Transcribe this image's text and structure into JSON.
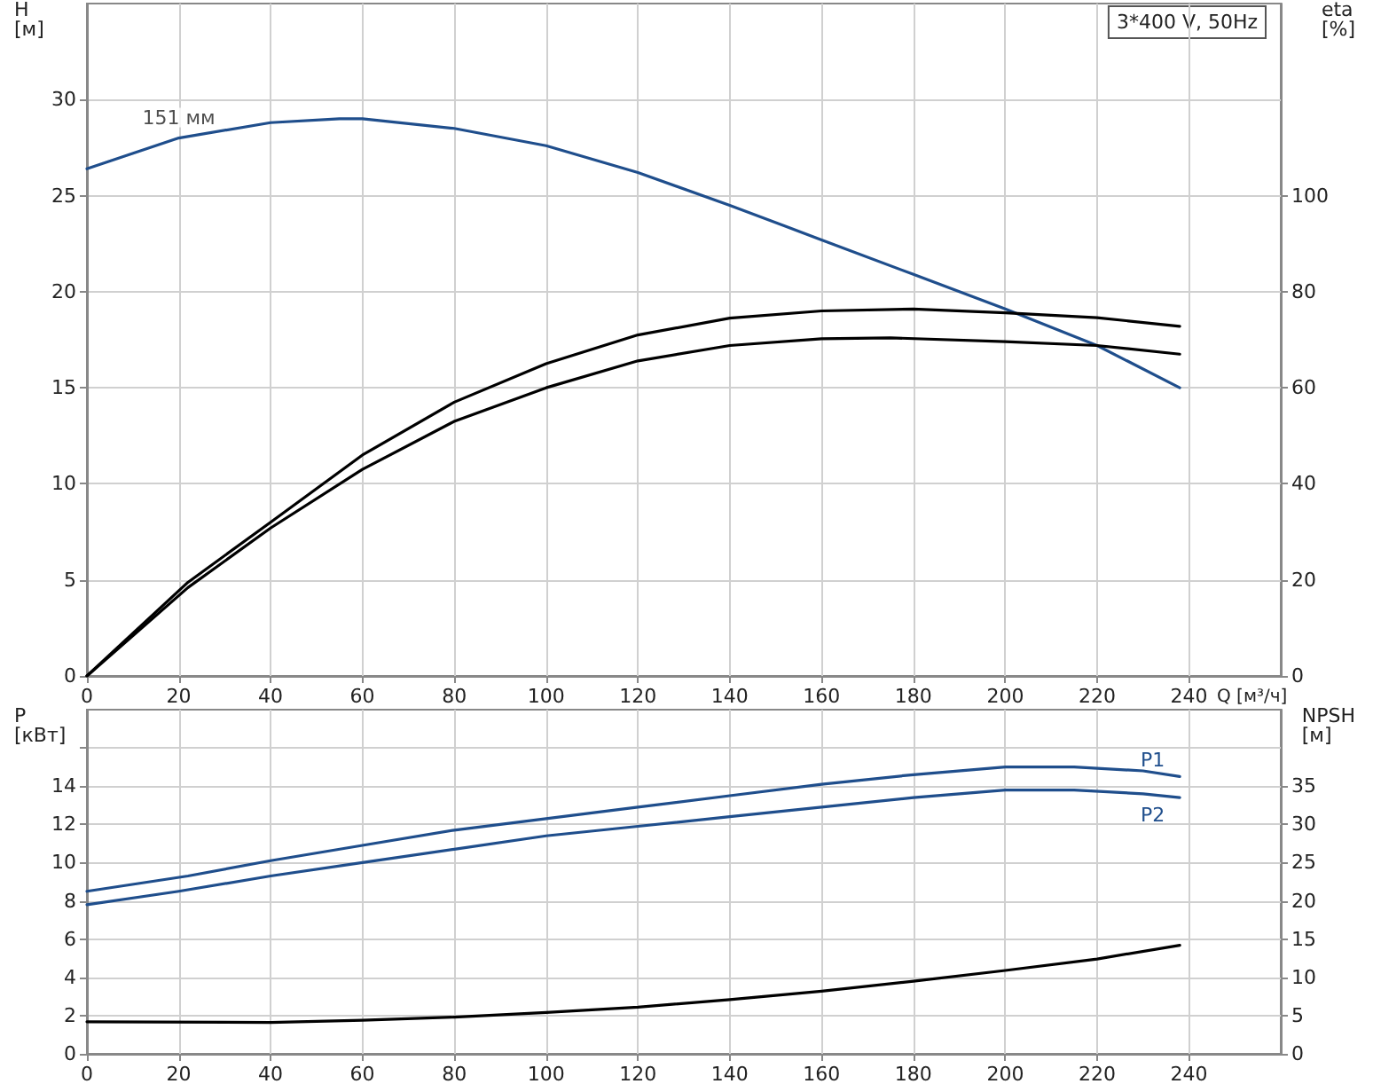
{
  "chart_data": [
    {
      "type": "line",
      "xlabel": "Q [м³/ч]",
      "ylabel": "H\n[м]",
      "y2label": "eta\n[%]",
      "xlim": [
        0,
        260
      ],
      "xticks": [
        0,
        20,
        40,
        60,
        80,
        100,
        120,
        140,
        160,
        180,
        200,
        220,
        240
      ],
      "ylim": [
        0,
        35
      ],
      "yticks": [
        0,
        5,
        10,
        15,
        20,
        25,
        30
      ],
      "y2lim": [
        0,
        140
      ],
      "y2ticks": [
        0,
        20,
        40,
        60,
        80,
        100
      ],
      "grid": true,
      "legend": false,
      "marker": "none",
      "line_style": "solid",
      "annotations": [
        {
          "text": "151 мм",
          "x": 20,
          "y": 28
        },
        "3*400 V, 50Hz"
      ],
      "series": [
        {
          "color": "#1f4e8c",
          "x": [
            0,
            20,
            40,
            55,
            60,
            80,
            100,
            120,
            140,
            160,
            180,
            200,
            220,
            238
          ],
          "values": [
            26.4,
            28.0,
            28.8,
            29.0,
            29.0,
            28.5,
            27.6,
            26.2,
            24.5,
            22.7,
            20.9,
            19.1,
            17.2,
            15.0
          ]
        },
        {
          "color": "#000000",
          "axis": "y2",
          "x": [
            0,
            22,
            40,
            60,
            80,
            100,
            120,
            140,
            160,
            180,
            200,
            220,
            238
          ],
          "values": [
            0,
            19.5,
            32,
            46,
            57,
            65,
            71,
            74.5,
            76,
            76.4,
            75.6,
            74.6,
            72.8
          ]
        },
        {
          "color": "#000000",
          "axis": "y2",
          "x": [
            0,
            22,
            40,
            60,
            80,
            100,
            120,
            140,
            160,
            175,
            200,
            220,
            238
          ],
          "values": [
            0,
            18.4,
            30.8,
            43,
            53,
            60,
            65.6,
            68.8,
            70.2,
            70.4,
            69.6,
            68.8,
            67
          ]
        }
      ]
    },
    {
      "type": "line",
      "ylabel": "P\n[кВт]",
      "y2label": "NPSH\n[м]",
      "xlim": [
        0,
        260
      ],
      "xticks": [
        0,
        20,
        40,
        60,
        80,
        100,
        120,
        140,
        160,
        180,
        200,
        220,
        240
      ],
      "ylim": [
        0,
        18
      ],
      "yticks": [
        0,
        2,
        4,
        6,
        8,
        10,
        12,
        14,
        {
          "value": 16,
          "label": null
        }
      ],
      "y2lim": [
        0,
        45
      ],
      "y2ticks": [
        0,
        5,
        10,
        15,
        20,
        25,
        30,
        35
      ],
      "grid": true,
      "legend": false,
      "marker": "none",
      "line_style": "solid",
      "series": [
        {
          "name": "P1",
          "color": "#1f4e8c",
          "x": [
            0,
            22,
            40,
            60,
            80,
            100,
            120,
            140,
            160,
            180,
            200,
            215,
            230,
            238
          ],
          "values": [
            8.5,
            9.3,
            10.1,
            10.9,
            11.7,
            12.3,
            12.9,
            13.5,
            14.1,
            14.6,
            15.0,
            15.0,
            14.8,
            14.5
          ]
        },
        {
          "name": "P2",
          "color": "#1f4e8c",
          "x": [
            0,
            20,
            40,
            60,
            80,
            100,
            120,
            140,
            160,
            180,
            200,
            215,
            230,
            238
          ],
          "values": [
            7.8,
            8.5,
            9.3,
            10.0,
            10.7,
            11.4,
            11.9,
            12.4,
            12.9,
            13.4,
            13.8,
            13.8,
            13.6,
            13.4
          ]
        },
        {
          "color": "#000000",
          "axis": "y2",
          "x": [
            0,
            40,
            60,
            80,
            100,
            120,
            140,
            160,
            180,
            200,
            220,
            238
          ],
          "values": [
            4.2,
            4.1,
            4.4,
            4.8,
            5.4,
            6.1,
            7.1,
            8.2,
            9.5,
            10.9,
            12.4,
            14.2
          ]
        }
      ]
    }
  ]
}
